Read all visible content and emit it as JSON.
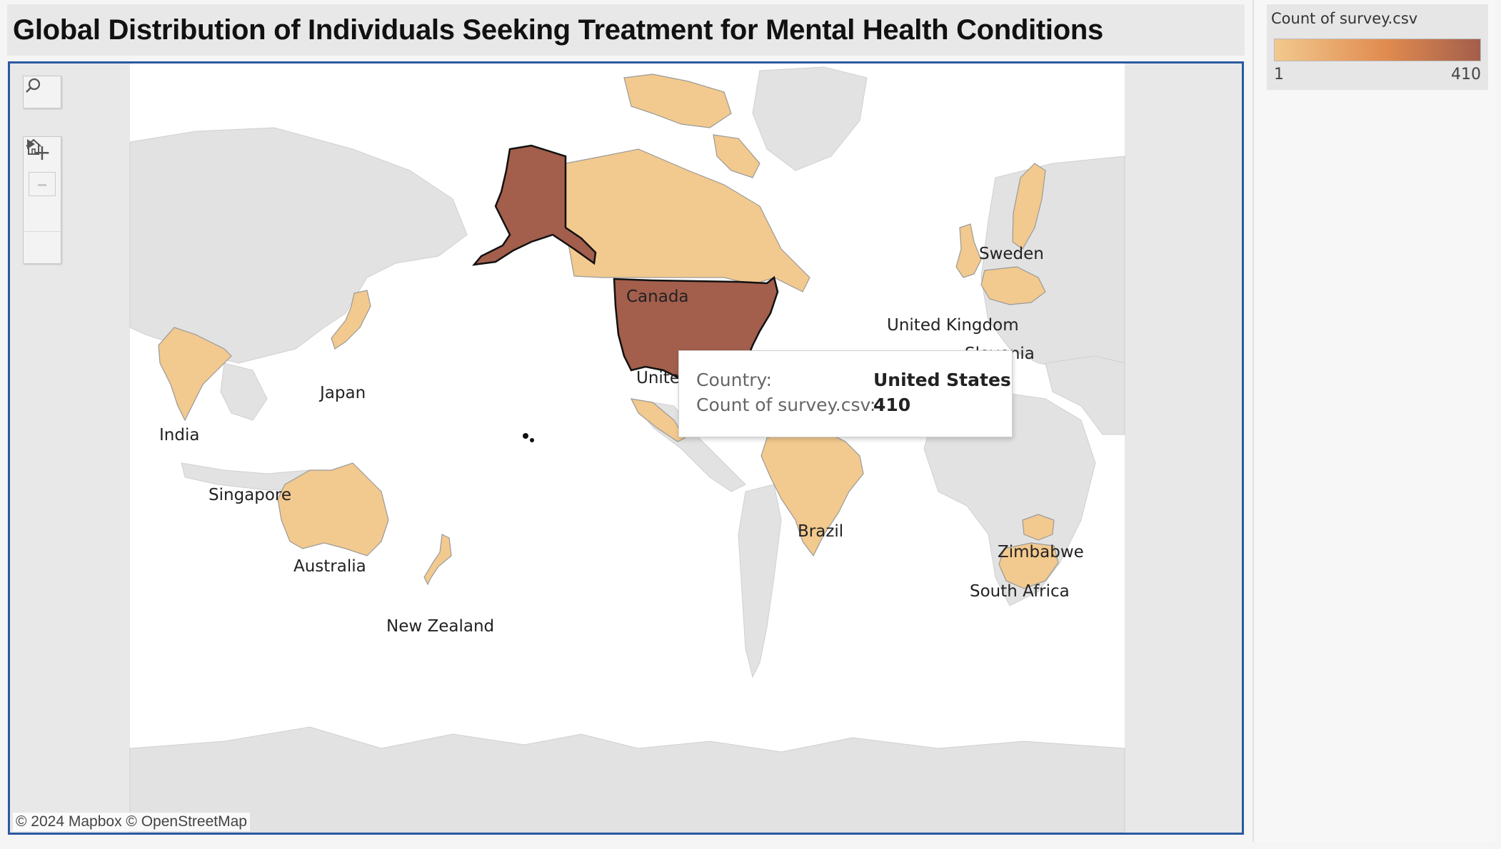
{
  "title": "Global Distribution of Individuals Seeking Treatment for Mental Health Conditions",
  "legend": {
    "title": "Count of survey.csv",
    "min": "1",
    "max": "410",
    "color_low": "#f2c98e",
    "color_mid": "#e08a4f",
    "color_high": "#a35e4c"
  },
  "tooltip": {
    "country_key": "Country:",
    "country_value": "United States",
    "count_key": "Count of survey.csv:",
    "count_value": "410"
  },
  "attribution": "© 2024 Mapbox  © OpenStreetMap",
  "map_controls": [
    "search-icon",
    "zoom-in-icon",
    "zoom-out-icon",
    "home-icon",
    "play-icon"
  ],
  "countries": [
    {
      "name": "United States",
      "count": 410,
      "label": "United States"
    },
    {
      "name": "Canada",
      "count": 1,
      "label": "Canada"
    },
    {
      "name": "United Kingdom",
      "count": 1,
      "label": "United Kingdom"
    },
    {
      "name": "Sweden",
      "count": 1,
      "label": "Sweden"
    },
    {
      "name": "Slovenia",
      "count": 1,
      "label": "Slovenia"
    },
    {
      "name": "Japan",
      "count": 1,
      "label": "Japan"
    },
    {
      "name": "India",
      "count": 1,
      "label": "India"
    },
    {
      "name": "Singapore",
      "count": 1,
      "label": "Singapore"
    },
    {
      "name": "Australia",
      "count": 1,
      "label": "Australia"
    },
    {
      "name": "New Zealand",
      "count": 1,
      "label": "New Zealand"
    },
    {
      "name": "Brazil",
      "count": 1,
      "label": "Brazil"
    },
    {
      "name": "Zimbabwe",
      "count": 1,
      "label": "Zimbabwe"
    },
    {
      "name": "South Africa",
      "count": 1,
      "label": "South Africa"
    }
  ]
}
